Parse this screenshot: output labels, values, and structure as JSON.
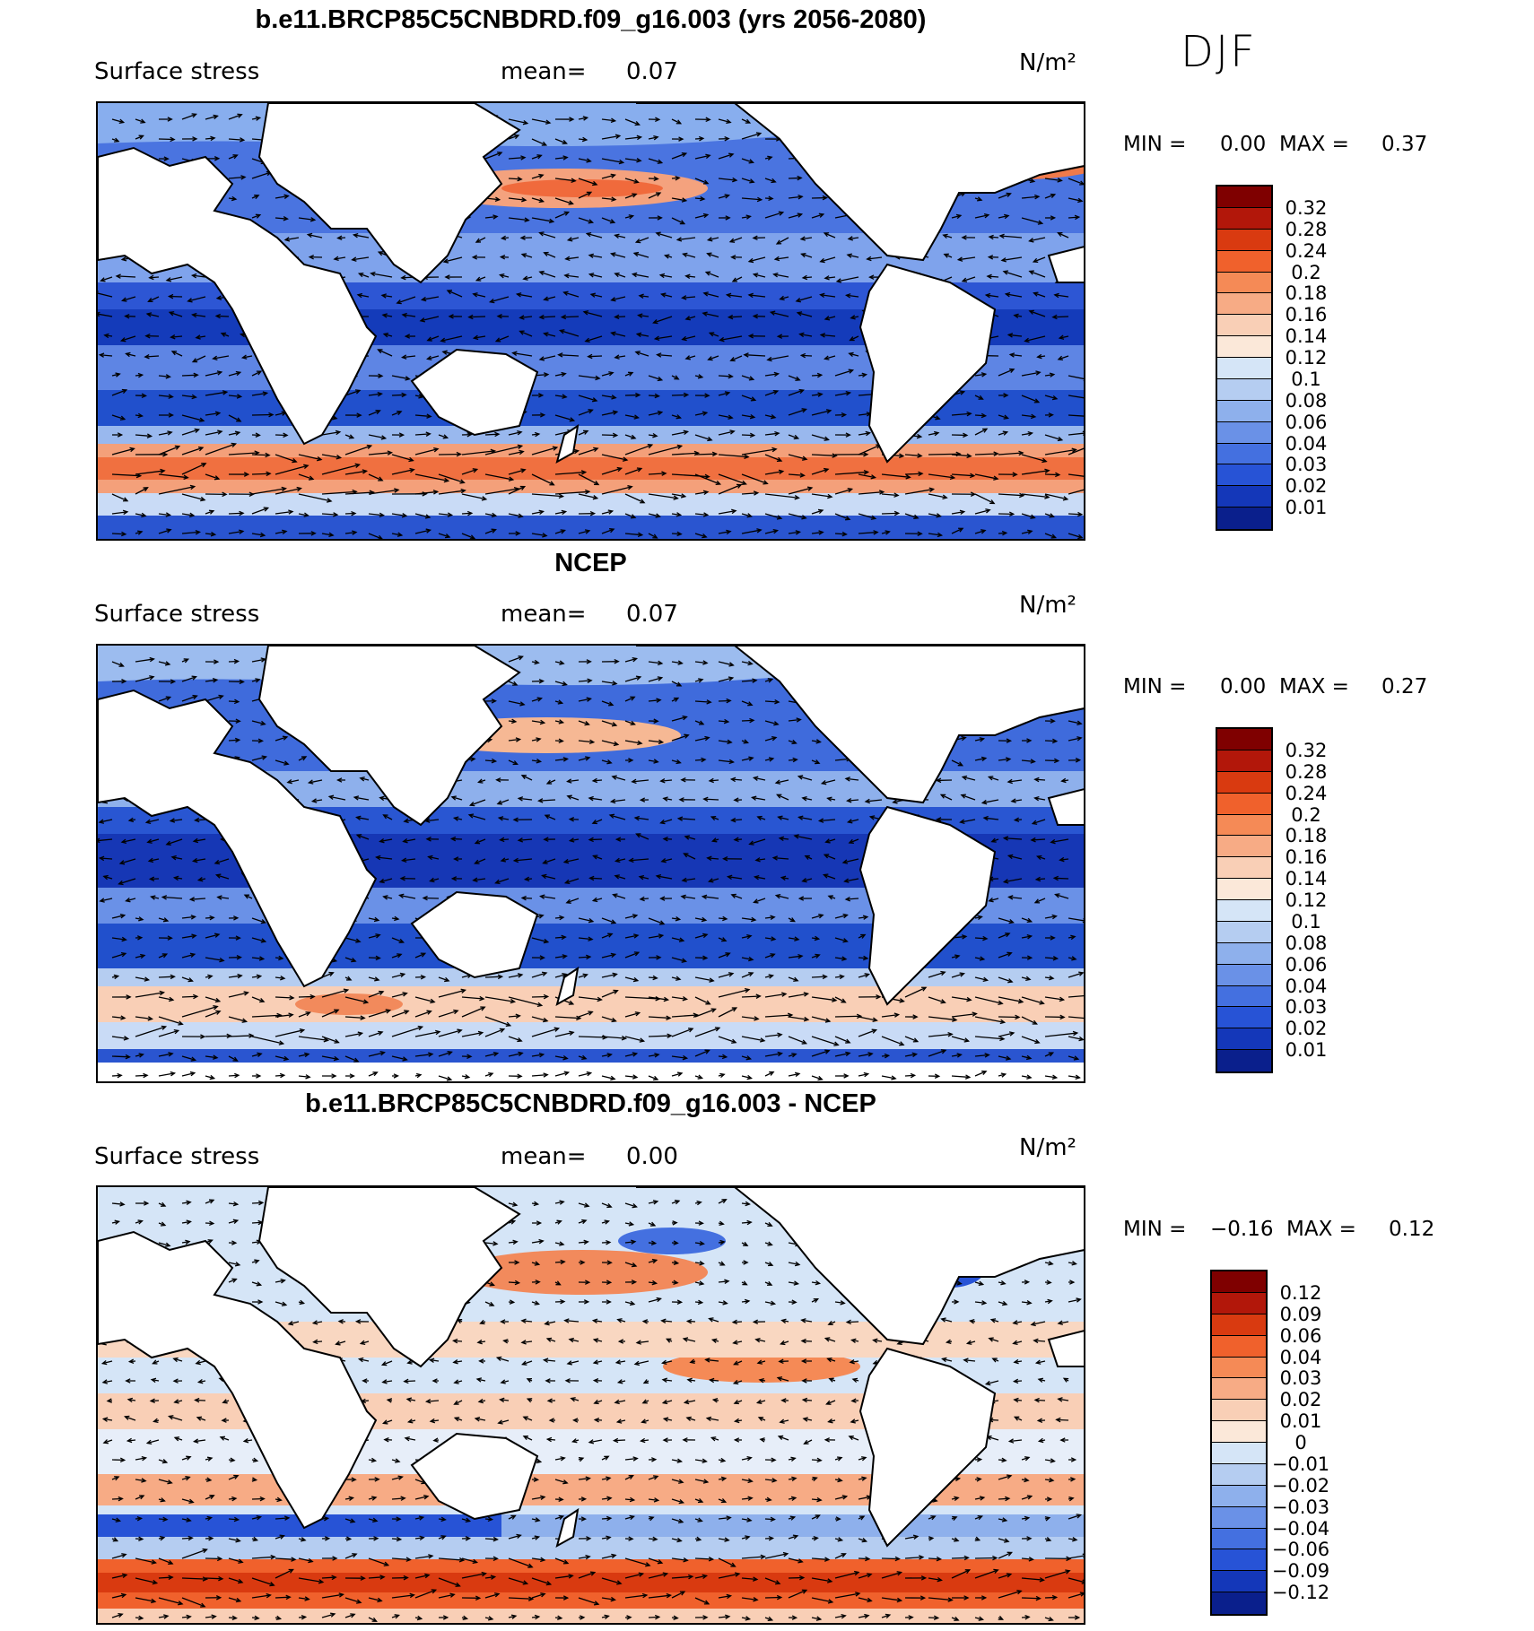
{
  "season": "DJF",
  "panels": [
    {
      "id": "model",
      "title": "b.e11.BRCP85C5CNBDRD.f09_g16.003 (yrs 2056-2080)",
      "variable": "Surface stress",
      "mean_label": "mean=",
      "mean_value": "0.07",
      "units": "N/m²",
      "min_label": "MIN =",
      "min_value": "0.00",
      "max_label": "MAX =",
      "max_value": "0.37",
      "colorbar": {
        "labels": [
          "0.32",
          "0.28",
          "0.24",
          "0.2",
          "0.18",
          "0.16",
          "0.14",
          "0.12",
          "0.1",
          "0.08",
          "0.06",
          "0.04",
          "0.03",
          "0.02",
          "0.01"
        ],
        "colors": [
          "#7f0000",
          "#b2170a",
          "#d93a10",
          "#f0612c",
          "#f58a56",
          "#f7ab85",
          "#f9cfb6",
          "#fbe8d9",
          "#d5e5f7",
          "#b5cdf1",
          "#8eb0ec",
          "#6a91e7",
          "#4470e0",
          "#2753d6",
          "#1437b9",
          "#0a1f8c"
        ]
      }
    },
    {
      "id": "obs",
      "title": "NCEP",
      "variable": "Surface stress",
      "mean_label": "mean=",
      "mean_value": "0.07",
      "units": "N/m²",
      "min_label": "MIN =",
      "min_value": "0.00",
      "max_label": "MAX =",
      "max_value": "0.27",
      "colorbar": {
        "labels": [
          "0.32",
          "0.28",
          "0.24",
          "0.2",
          "0.18",
          "0.16",
          "0.14",
          "0.12",
          "0.1",
          "0.08",
          "0.06",
          "0.04",
          "0.03",
          "0.02",
          "0.01"
        ],
        "colors": [
          "#7f0000",
          "#b2170a",
          "#d93a10",
          "#f0612c",
          "#f58a56",
          "#f7ab85",
          "#f9cfb6",
          "#fbe8d9",
          "#d5e5f7",
          "#b5cdf1",
          "#8eb0ec",
          "#6a91e7",
          "#4470e0",
          "#2753d6",
          "#1437b9",
          "#0a1f8c"
        ]
      }
    },
    {
      "id": "diff",
      "title": "b.e11.BRCP85C5CNBDRD.f09_g16.003 - NCEP",
      "variable": "Surface stress",
      "mean_label": "mean=",
      "mean_value": "0.00",
      "units": "N/m²",
      "min_label": "MIN =",
      "min_value": "−0.16",
      "max_label": "MAX =",
      "max_value": "0.12",
      "colorbar": {
        "labels": [
          "0.12",
          "0.09",
          "0.06",
          "0.04",
          "0.03",
          "0.02",
          "0.01",
          "0",
          "−0.01",
          "−0.02",
          "−0.03",
          "−0.04",
          "−0.06",
          "−0.09",
          "−0.12"
        ],
        "colors": [
          "#7f0000",
          "#b2170a",
          "#d93a10",
          "#f0612c",
          "#f58a56",
          "#f7ab85",
          "#f9cfb6",
          "#fbe8d9",
          "#d5e5f7",
          "#b5cdf1",
          "#8eb0ec",
          "#6a91e7",
          "#4470e0",
          "#2753d6",
          "#1437b9",
          "#0a1f8c"
        ]
      }
    }
  ]
}
